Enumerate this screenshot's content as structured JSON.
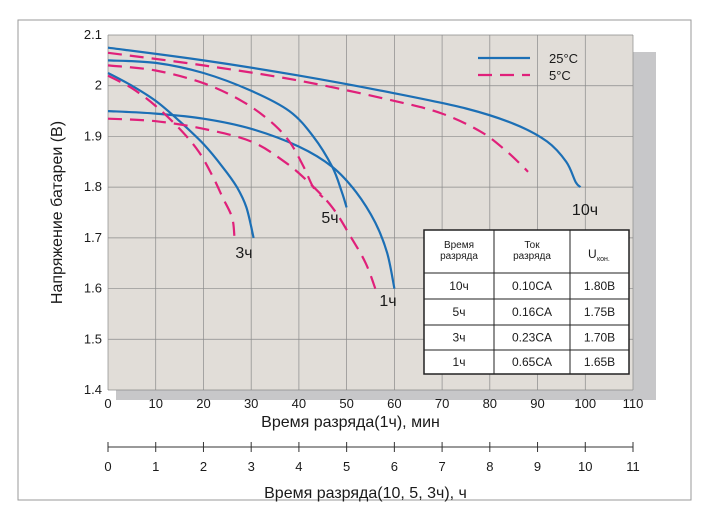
{
  "chart_data": {
    "type": "line",
    "title": "",
    "ylabel": "Напряжение батареи (В)",
    "xlabel": "Время разряда(1ч), мин",
    "xlabel2": "Время разряда(10, 5, 3ч), ч",
    "xlim": [
      0,
      110
    ],
    "ylim": [
      1.4,
      2.1
    ],
    "x_ticks": [
      "0",
      "10",
      "20",
      "30",
      "40",
      "50",
      "60",
      "70",
      "80",
      "90",
      "100",
      "110"
    ],
    "y_ticks": [
      "1.4",
      "1.5",
      "1.6",
      "1.7",
      "1.8",
      "1.9",
      "2",
      "2.1"
    ],
    "x2_ticks": [
      "0",
      "1",
      "2",
      "3",
      "4",
      "5",
      "6",
      "7",
      "8",
      "9",
      "10",
      "11"
    ],
    "grid": true,
    "legend_position": "top-right",
    "colors": {
      "plot_bg": "#e1ddd8",
      "shadow": "#c7c7c9",
      "grid": "#8a8a8a",
      "line_25": "#1c6fb5",
      "line_5": "#e0207a"
    },
    "legend": [
      {
        "label": "25°C",
        "style": "solid",
        "color": "#1c6fb5"
      },
      {
        "label": "5°C",
        "style": "dashed",
        "color": "#e0207a"
      }
    ],
    "curve_labels": [
      "10ч",
      "5ч",
      "3ч",
      "1ч"
    ],
    "series": [
      {
        "temp": "25°C",
        "rate": "10ч",
        "points": [
          [
            0,
            2.075
          ],
          [
            20,
            2.05
          ],
          [
            40,
            2.02
          ],
          [
            60,
            1.985
          ],
          [
            75,
            1.955
          ],
          [
            85,
            1.925
          ],
          [
            92,
            1.89
          ],
          [
            96,
            1.85
          ],
          [
            98,
            1.81
          ],
          [
            99,
            1.8
          ]
        ]
      },
      {
        "temp": "25°C",
        "rate": "5ч",
        "points": [
          [
            0,
            2.05
          ],
          [
            10,
            2.045
          ],
          [
            20,
            2.025
          ],
          [
            30,
            1.99
          ],
          [
            38,
            1.95
          ],
          [
            43,
            1.9
          ],
          [
            47,
            1.84
          ],
          [
            49,
            1.79
          ],
          [
            50,
            1.76
          ]
        ]
      },
      {
        "temp": "25°C",
        "rate": "3ч",
        "points": [
          [
            0,
            2.025
          ],
          [
            5,
            2.0
          ],
          [
            10,
            1.97
          ],
          [
            15,
            1.93
          ],
          [
            20,
            1.885
          ],
          [
            24,
            1.84
          ],
          [
            27,
            1.8
          ],
          [
            29,
            1.76
          ],
          [
            30.5,
            1.7
          ]
        ]
      },
      {
        "temp": "25°C",
        "rate": "1ч",
        "points": [
          [
            0,
            1.95
          ],
          [
            10,
            1.945
          ],
          [
            20,
            1.935
          ],
          [
            30,
            1.915
          ],
          [
            40,
            1.88
          ],
          [
            47,
            1.84
          ],
          [
            52,
            1.79
          ],
          [
            56,
            1.73
          ],
          [
            58.5,
            1.67
          ],
          [
            60,
            1.6
          ]
        ]
      },
      {
        "temp": "5°C",
        "rate": "10ч",
        "points": [
          [
            0,
            2.065
          ],
          [
            20,
            2.04
          ],
          [
            40,
            2.01
          ],
          [
            60,
            1.97
          ],
          [
            70,
            1.945
          ],
          [
            78,
            1.91
          ],
          [
            83,
            1.875
          ],
          [
            87,
            1.84
          ],
          [
            88,
            1.83
          ]
        ]
      },
      {
        "temp": "5°C",
        "rate": "5ч",
        "points": [
          [
            0,
            2.04
          ],
          [
            10,
            2.03
          ],
          [
            20,
            2.005
          ],
          [
            28,
            1.97
          ],
          [
            34,
            1.93
          ],
          [
            38,
            1.89
          ],
          [
            41,
            1.84
          ],
          [
            43,
            1.8
          ],
          [
            45,
            1.78
          ]
        ]
      },
      {
        "temp": "5°C",
        "rate": "3ч",
        "points": [
          [
            0,
            2.02
          ],
          [
            5,
            1.995
          ],
          [
            10,
            1.96
          ],
          [
            15,
            1.915
          ],
          [
            19,
            1.87
          ],
          [
            22,
            1.82
          ],
          [
            24,
            1.78
          ],
          [
            26,
            1.74
          ],
          [
            26.5,
            1.7
          ]
        ]
      },
      {
        "temp": "5°C",
        "rate": "1ч",
        "points": [
          [
            0,
            1.935
          ],
          [
            10,
            1.93
          ],
          [
            20,
            1.915
          ],
          [
            30,
            1.89
          ],
          [
            37,
            1.85
          ],
          [
            42,
            1.81
          ],
          [
            47,
            1.76
          ],
          [
            51,
            1.7
          ],
          [
            54,
            1.65
          ],
          [
            56,
            1.6
          ]
        ]
      }
    ],
    "table": {
      "headers": [
        "Время разряда",
        "Ток разряда",
        "U",
        "кон."
      ],
      "rows": [
        [
          "10ч",
          "0.10CA",
          "1.80В"
        ],
        [
          "5ч",
          "0.16CA",
          "1.75В"
        ],
        [
          "3ч",
          "0.23CA",
          "1.70В"
        ],
        [
          "1ч",
          "0.65CA",
          "1.65В"
        ]
      ]
    }
  }
}
